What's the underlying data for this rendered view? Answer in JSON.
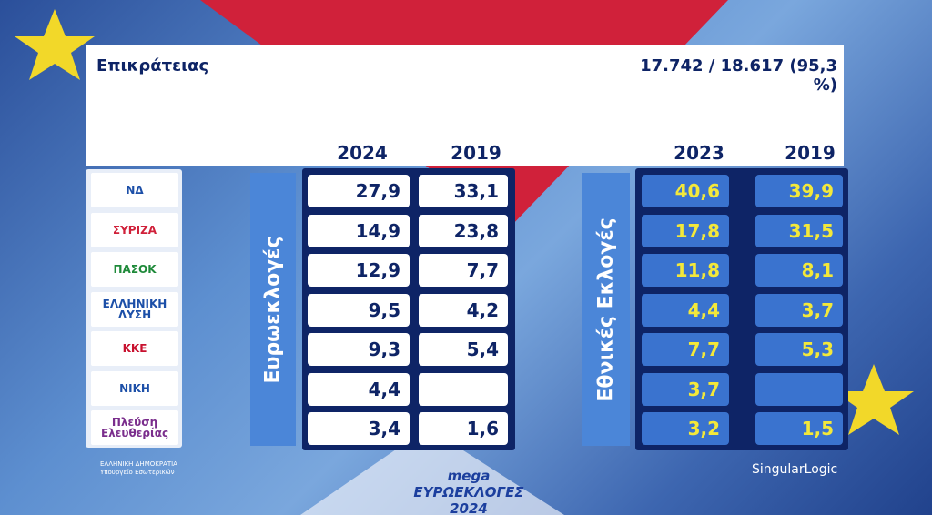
{
  "header": {
    "title": "Επικράτειας",
    "counted": "17.742 / 18.617  (95,3 %)"
  },
  "parties": [
    "ΝΔ",
    "ΣΥΡΙΖΑ",
    "ΠΑΣΟΚ",
    "ΕΛΛΗΝΙΚΗ ΛΥΣΗ",
    "ΚΚΕ",
    "ΝΙΚΗ",
    "Πλεύση Ελευθερίας"
  ],
  "euro": {
    "label": "Ευρωεκλογές",
    "columns": [
      "2024",
      "2019"
    ],
    "rows": [
      [
        "27,9",
        "33,1"
      ],
      [
        "14,9",
        "23,8"
      ],
      [
        "12,9",
        "7,7"
      ],
      [
        "9,5",
        "4,2"
      ],
      [
        "9,3",
        "5,4"
      ],
      [
        "4,4",
        null
      ],
      [
        "3,4",
        "1,6"
      ]
    ]
  },
  "national": {
    "label": "Εθνικές Εκλογές",
    "columns": [
      "2023",
      "2019"
    ],
    "rows": [
      [
        "40,6",
        "39,9"
      ],
      [
        "17,8",
        "31,5"
      ],
      [
        "11,8",
        "8,1"
      ],
      [
        "4,4",
        "3,7"
      ],
      [
        "7,7",
        "5,3"
      ],
      [
        "3,7",
        null
      ],
      [
        "3,2",
        "1,5"
      ]
    ]
  },
  "footer": {
    "ministry": "ΕΛΛΗΝΙΚΗ ΔΗΜΟΚΡΑΤΙΑ Υπουργείο Εσωτερικών",
    "program": "mega ΕΥΡΩΕΚΛΟΓΕΣ 2024",
    "provider": "SingularLogic"
  }
}
